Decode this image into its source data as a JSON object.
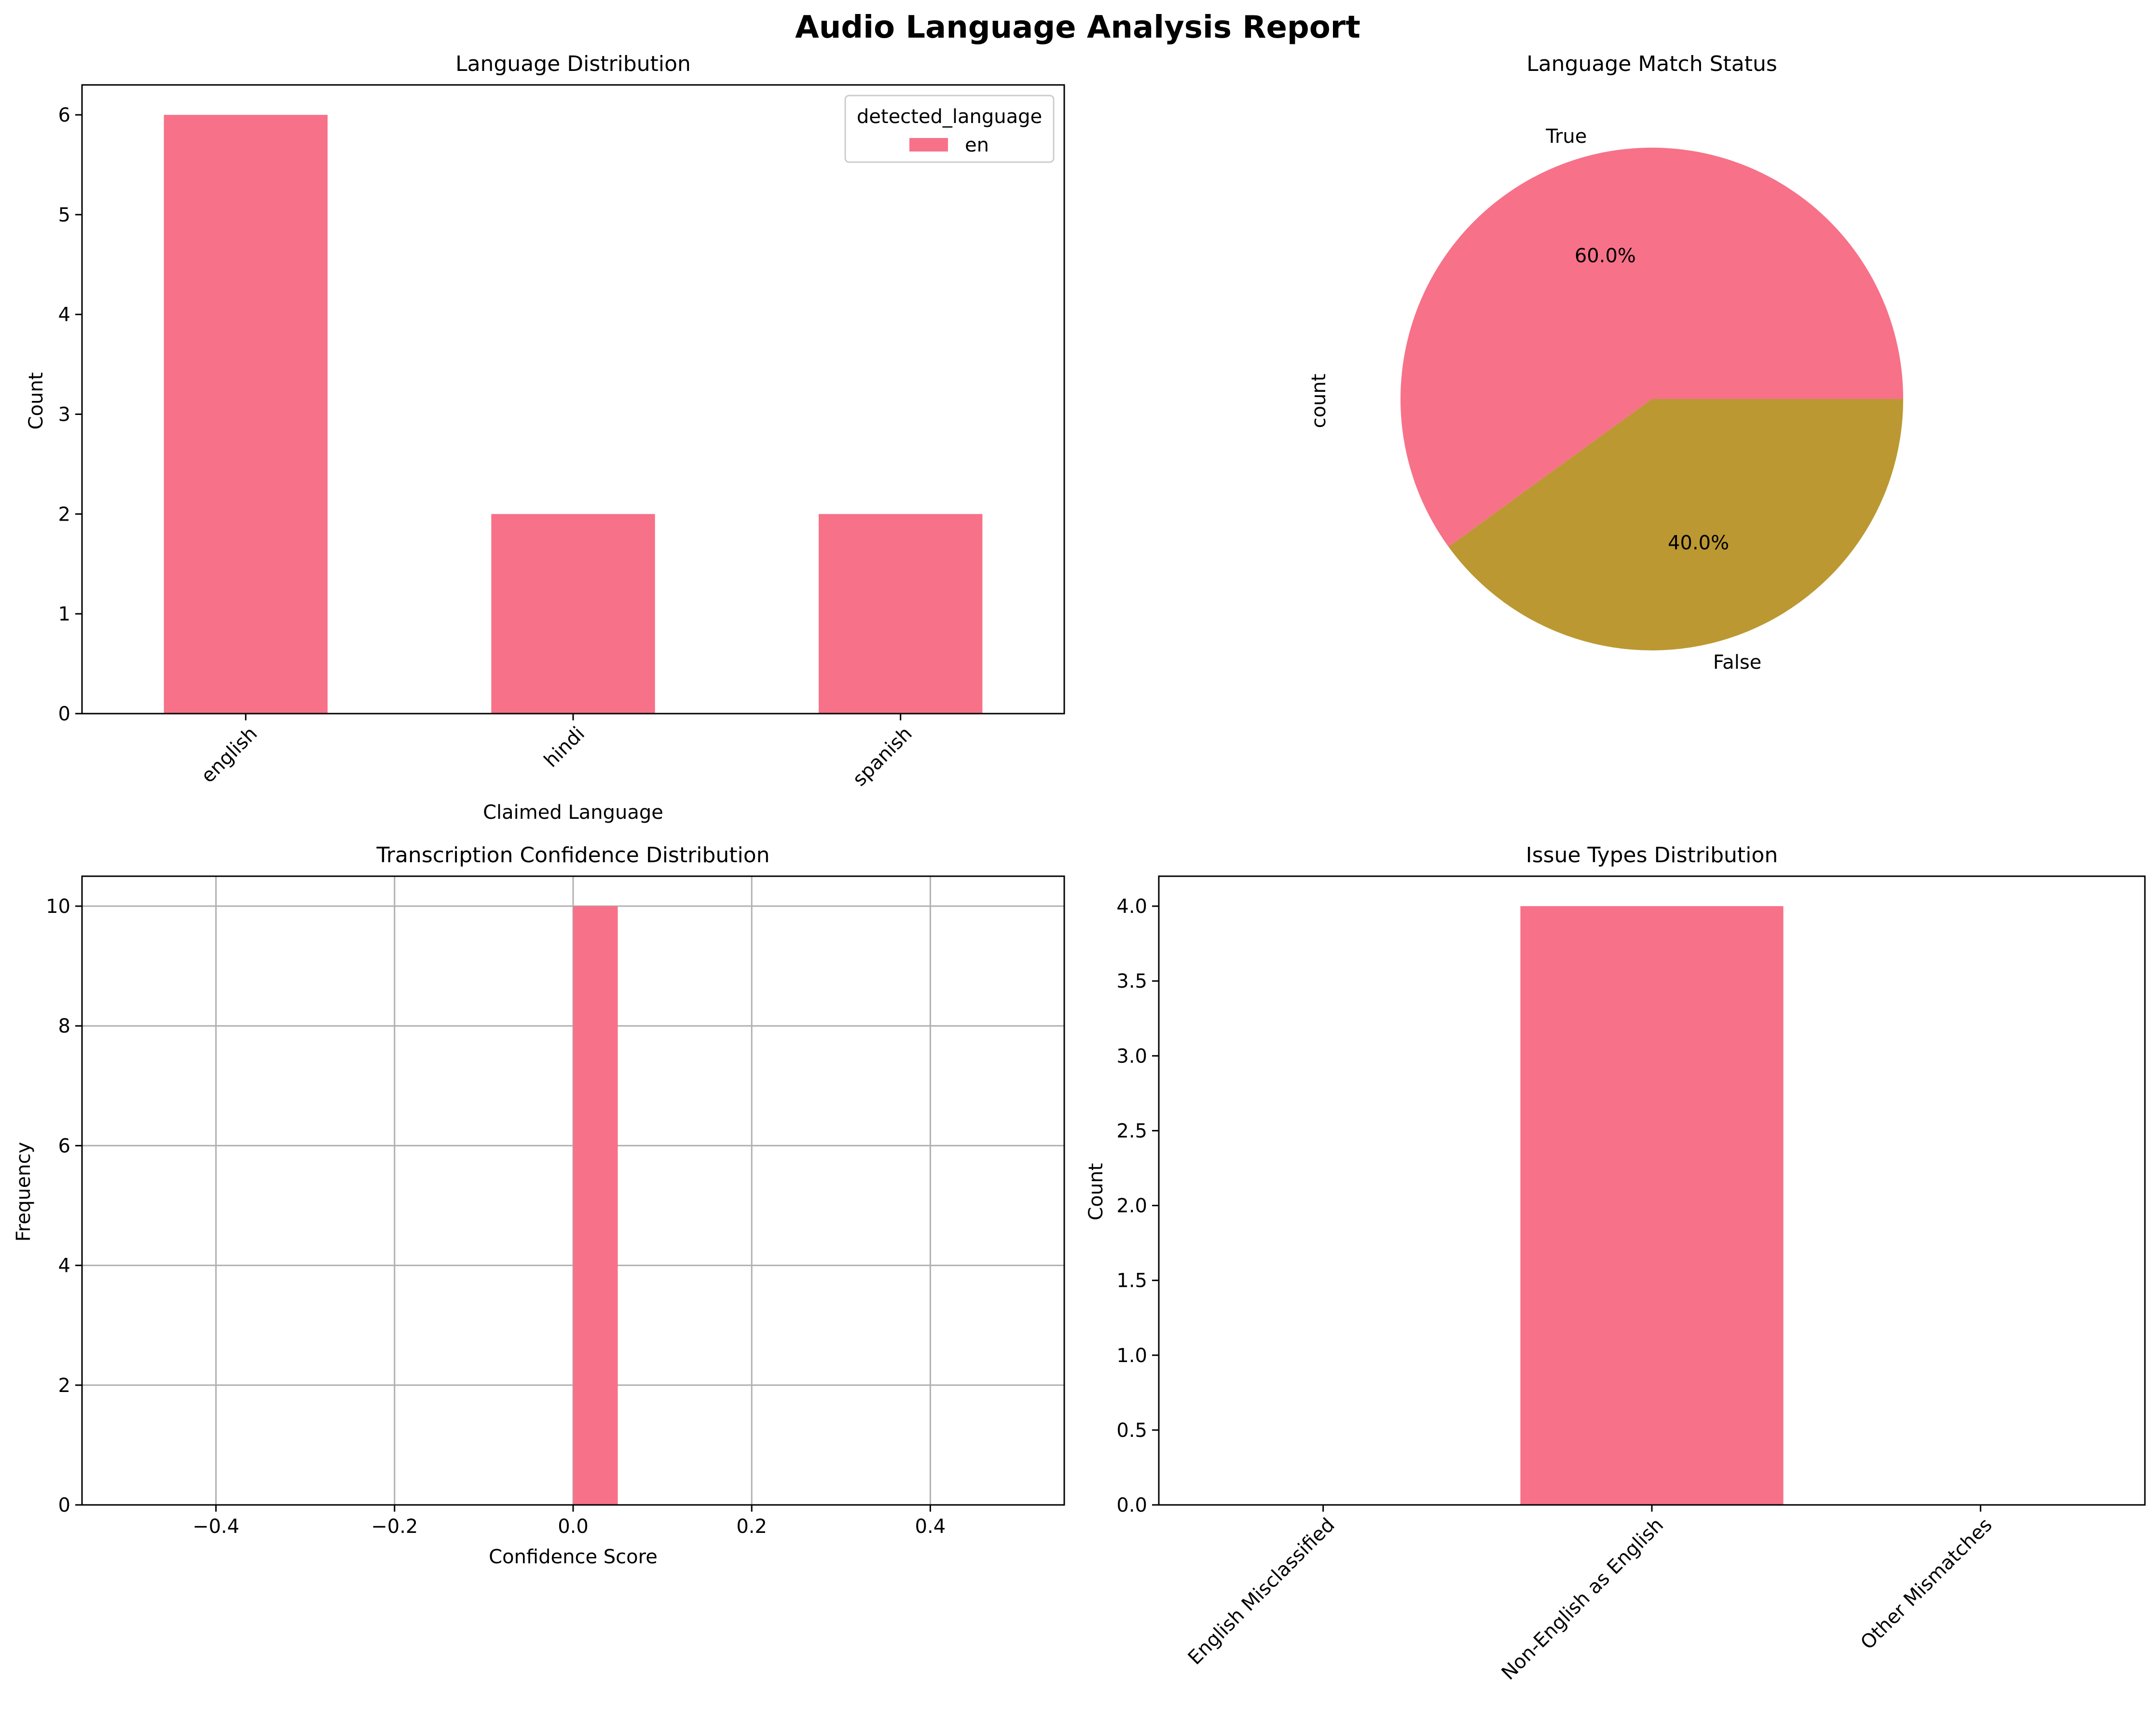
{
  "figure": {
    "title": "Audio Language Analysis Report"
  },
  "colors": {
    "pink": "#f77189",
    "olive": "#bb9832",
    "grid": "#b0b0b0",
    "axis": "#000000"
  },
  "chart_data": [
    {
      "type": "bar",
      "title": "Language Distribution",
      "xlabel": "Claimed Language",
      "ylabel": "Count",
      "categories": [
        "english",
        "hindi",
        "spanish"
      ],
      "series": [
        {
          "name": "en",
          "values": [
            6,
            2,
            2
          ]
        }
      ],
      "ylim": [
        0,
        6.3
      ],
      "yticks": [
        "0",
        "1",
        "2",
        "3",
        "4",
        "5",
        "6"
      ],
      "xtick_rotation": 45,
      "grid": false,
      "legend": {
        "title": "detected_language",
        "position": "upper right",
        "entries": [
          "en"
        ]
      }
    },
    {
      "type": "pie",
      "title": "Language Match Status",
      "ylabel": "count",
      "labels": [
        "True",
        "False"
      ],
      "values": [
        6,
        4
      ],
      "percent_labels": [
        "60.0%",
        "40.0%"
      ]
    },
    {
      "type": "bar",
      "title": "Transcription Confidence Distribution",
      "xlabel": "Confidence Score",
      "ylabel": "Frequency",
      "bins": [
        {
          "start": 0.0,
          "end": 0.05,
          "count": 10
        }
      ],
      "xlim": [
        -0.55,
        0.55
      ],
      "ylim": [
        0,
        10.5
      ],
      "xticks": [
        "−0.4",
        "−0.2",
        "0.0",
        "0.2",
        "0.4"
      ],
      "yticks": [
        "0",
        "2",
        "4",
        "6",
        "8",
        "10"
      ],
      "grid": true
    },
    {
      "type": "bar",
      "title": "Issue Types Distribution",
      "ylabel": "Count",
      "categories": [
        "English Misclassified",
        "Non-English as English",
        "Other Mismatches"
      ],
      "values": [
        0,
        4,
        0
      ],
      "ylim": [
        0,
        4.2
      ],
      "yticks": [
        "0.0",
        "0.5",
        "1.0",
        "1.5",
        "2.0",
        "2.5",
        "3.0",
        "3.5",
        "4.0"
      ],
      "xtick_rotation": 45,
      "grid": false
    }
  ]
}
